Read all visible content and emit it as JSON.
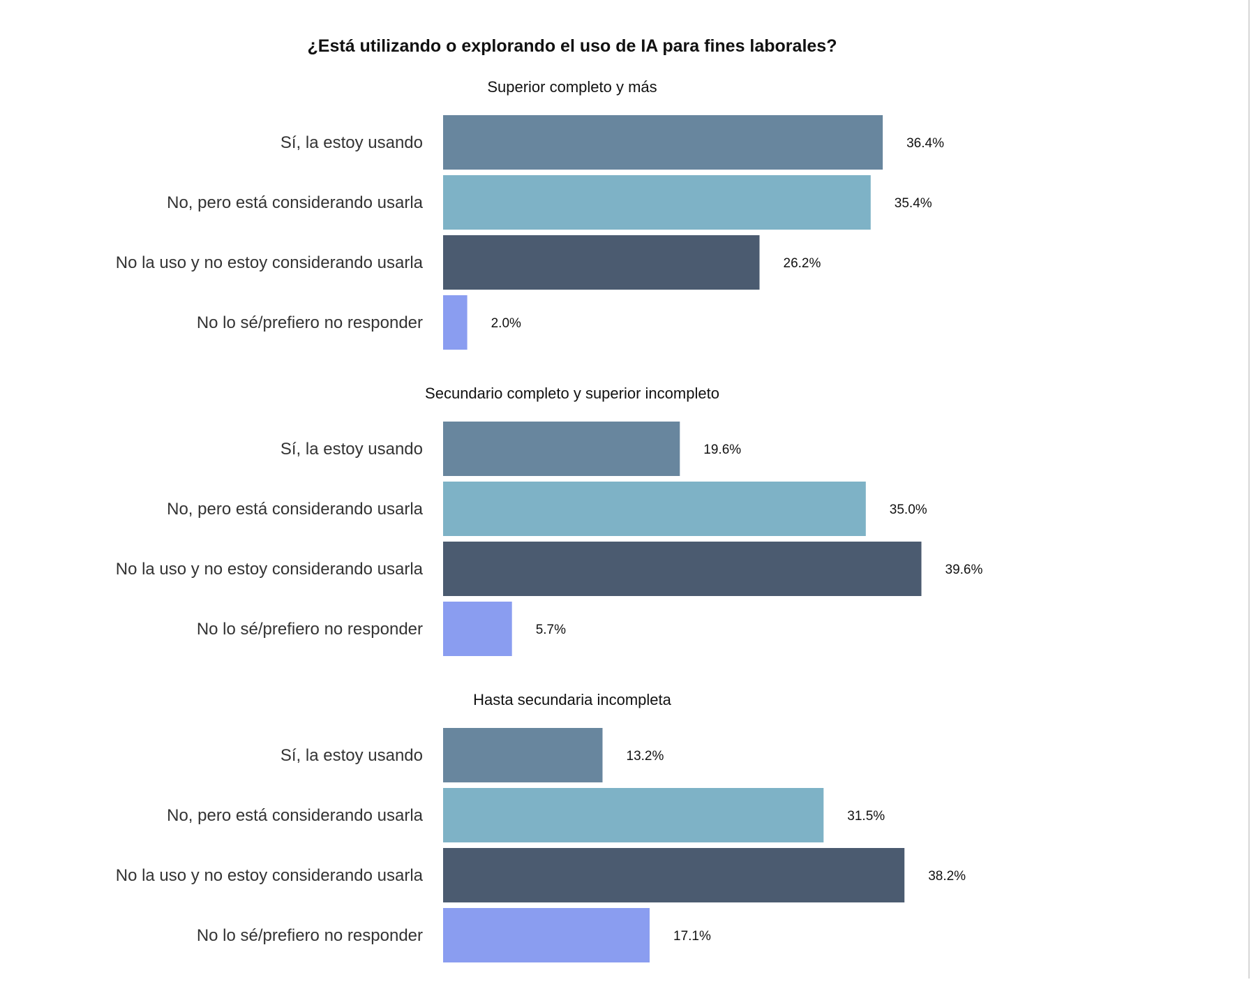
{
  "chart_data": {
    "type": "bar",
    "orientation": "horizontal",
    "title": "¿Está utilizando o explorando el uso de IA para fines laborales?",
    "value_format": "percent",
    "value_max": 40,
    "categories": [
      "Sí, la estoy usando",
      "No, pero está considerando usarla",
      "No la uso y no estoy considerando usarla",
      "No lo sé/prefiero no responder"
    ],
    "colors": [
      "#68869E",
      "#7EB2C6",
      "#4B5B70",
      "#8A9DF0"
    ],
    "panels": [
      {
        "title": "Superior completo y más",
        "values": [
          36.4,
          35.4,
          26.2,
          2.0
        ],
        "labels": [
          "36.4%",
          "35.4%",
          "26.2%",
          "2.0%"
        ]
      },
      {
        "title": "Secundario completo y superior incompleto",
        "values": [
          19.6,
          35.0,
          39.6,
          5.7
        ],
        "labels": [
          "19.6%",
          "35.0%",
          "39.6%",
          "5.7%"
        ]
      },
      {
        "title": "Hasta secundaria incompleta",
        "values": [
          13.2,
          31.5,
          38.2,
          17.1
        ],
        "labels": [
          "13.2%",
          "31.5%",
          "38.2%",
          "17.1%"
        ]
      }
    ]
  }
}
